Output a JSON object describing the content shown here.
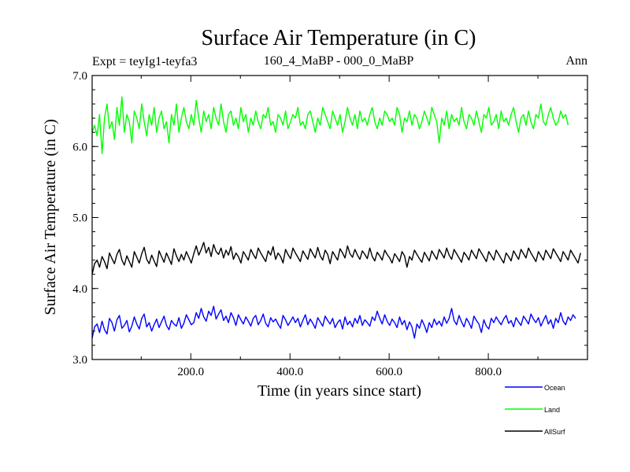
{
  "chart_data": {
    "type": "line",
    "title": "Surface Air Temperature (in C)",
    "subtitle_left": "Expt = teyIg1-teyfa3",
    "subtitle_center": "160_4_MaBP - 000_0_MaBP",
    "subtitle_right": "Ann",
    "xlabel": "Time (in years since start)",
    "ylabel": "Surface Air Temperature (in C)",
    "xlim": [
      1,
      1000
    ],
    "ylim": [
      3.0,
      7.0
    ],
    "x_ticks": [
      200,
      400,
      600,
      800
    ],
    "x_tick_labels": [
      "200.0",
      "400.0",
      "600.0",
      "800.0"
    ],
    "y_ticks": [
      3.0,
      4.0,
      5.0,
      6.0,
      7.0
    ],
    "y_tick_labels": [
      "3.0",
      "4.0",
      "5.0",
      "6.0",
      "7.0"
    ],
    "x_start": 1,
    "x_step": 5,
    "series": [
      {
        "name": "Ocean",
        "color": "#0000ff",
        "values": [
          3.3,
          3.46,
          3.5,
          3.38,
          3.54,
          3.42,
          3.36,
          3.58,
          3.52,
          3.4,
          3.56,
          3.62,
          3.44,
          3.48,
          3.55,
          3.39,
          3.47,
          3.6,
          3.5,
          3.43,
          3.58,
          3.64,
          3.46,
          3.52,
          3.4,
          3.49,
          3.57,
          3.45,
          3.53,
          3.61,
          3.48,
          3.42,
          3.55,
          3.5,
          3.47,
          3.59,
          3.44,
          3.51,
          3.63,
          3.56,
          3.49,
          3.52,
          3.66,
          3.58,
          3.72,
          3.6,
          3.54,
          3.68,
          3.62,
          3.75,
          3.57,
          3.64,
          3.7,
          3.55,
          3.61,
          3.52,
          3.66,
          3.59,
          3.48,
          3.63,
          3.56,
          3.5,
          3.6,
          3.54,
          3.47,
          3.58,
          3.62,
          3.49,
          3.55,
          3.64,
          3.51,
          3.46,
          3.59,
          3.53,
          3.57,
          3.5,
          3.44,
          3.62,
          3.56,
          3.48,
          3.54,
          3.6,
          3.52,
          3.58,
          3.46,
          3.55,
          3.63,
          3.49,
          3.57,
          3.51,
          3.44,
          3.59,
          3.53,
          3.47,
          3.61,
          3.55,
          3.5,
          3.58,
          3.45,
          3.52,
          3.56,
          3.43,
          3.6,
          3.49,
          3.54,
          3.46,
          3.58,
          3.51,
          3.62,
          3.48,
          3.56,
          3.52,
          3.47,
          3.6,
          3.55,
          3.68,
          3.58,
          3.5,
          3.63,
          3.54,
          3.48,
          3.57,
          3.52,
          3.45,
          3.6,
          3.49,
          3.55,
          3.42,
          3.53,
          3.46,
          3.3,
          3.5,
          3.44,
          3.56,
          3.48,
          3.38,
          3.52,
          3.45,
          3.57,
          3.49,
          3.54,
          3.47,
          3.6,
          3.51,
          3.58,
          3.72,
          3.55,
          3.49,
          3.62,
          3.53,
          3.46,
          3.58,
          3.52,
          3.44,
          3.61,
          3.55,
          3.5,
          3.38,
          3.56,
          3.47,
          3.43,
          3.58,
          3.52,
          3.6,
          3.54,
          3.49,
          3.57,
          3.62,
          3.51,
          3.55,
          3.46,
          3.59,
          3.53,
          3.48,
          3.61,
          3.56,
          3.5,
          3.64,
          3.57,
          3.52,
          3.59,
          3.47,
          3.55,
          3.62,
          3.5,
          3.56,
          3.44,
          3.58,
          3.52,
          3.66,
          3.54,
          3.49,
          3.6,
          3.55,
          3.63,
          3.58
        ]
      },
      {
        "name": "Land",
        "color": "#00ff00",
        "values": [
          6.2,
          6.3,
          6.15,
          6.45,
          5.9,
          6.4,
          6.6,
          6.25,
          6.35,
          6.1,
          6.55,
          6.3,
          6.7,
          6.2,
          6.45,
          6.35,
          6.05,
          6.5,
          6.4,
          6.25,
          6.6,
          6.35,
          6.15,
          6.45,
          6.3,
          6.55,
          6.2,
          6.4,
          6.5,
          6.25,
          6.35,
          6.05,
          6.45,
          6.3,
          6.6,
          6.2,
          6.4,
          6.55,
          6.35,
          6.25,
          6.45,
          6.3,
          6.65,
          6.4,
          6.2,
          6.5,
          6.35,
          6.45,
          6.25,
          6.55,
          6.4,
          6.3,
          6.6,
          6.35,
          6.2,
          6.45,
          6.5,
          6.3,
          6.4,
          6.25,
          6.55,
          6.35,
          6.45,
          6.2,
          6.4,
          6.3,
          6.5,
          6.35,
          6.25,
          6.45,
          6.4,
          6.55,
          6.3,
          6.35,
          6.2,
          6.45,
          6.4,
          6.3,
          6.5,
          6.25,
          6.35,
          6.45,
          6.4,
          6.55,
          6.3,
          6.35,
          6.25,
          6.45,
          6.5,
          6.35,
          6.2,
          6.4,
          6.3,
          6.55,
          6.45,
          6.35,
          6.25,
          6.5,
          6.4,
          6.3,
          6.45,
          6.2,
          6.35,
          6.55,
          6.4,
          6.3,
          6.45,
          6.25,
          6.5,
          6.35,
          6.4,
          6.3,
          6.45,
          6.55,
          6.35,
          6.25,
          6.4,
          6.3,
          6.5,
          6.45,
          6.35,
          6.4,
          6.3,
          6.55,
          6.45,
          6.2,
          6.4,
          6.35,
          6.5,
          6.3,
          6.45,
          6.4,
          6.25,
          6.35,
          6.5,
          6.4,
          6.3,
          6.55,
          6.45,
          6.35,
          6.05,
          6.4,
          6.3,
          6.5,
          6.25,
          6.45,
          6.35,
          6.4,
          6.3,
          6.55,
          6.35,
          6.25,
          6.45,
          6.4,
          6.3,
          6.5,
          6.35,
          6.2,
          6.45,
          6.4,
          6.55,
          6.3,
          6.35,
          6.45,
          6.25,
          6.5,
          6.35,
          6.4,
          6.3,
          6.45,
          6.55,
          6.35,
          6.2,
          6.4,
          6.45,
          6.3,
          6.5,
          6.35,
          6.25,
          6.45,
          6.4,
          6.6,
          6.35,
          6.3,
          6.45,
          6.55,
          6.4,
          6.3,
          6.35,
          6.5,
          6.4,
          6.45,
          6.3
        ]
      },
      {
        "name": "AllSurf",
        "color": "#000000",
        "values": [
          4.2,
          4.35,
          4.4,
          4.3,
          4.45,
          4.38,
          4.28,
          4.5,
          4.42,
          4.35,
          4.48,
          4.55,
          4.4,
          4.33,
          4.46,
          4.38,
          4.3,
          4.52,
          4.44,
          4.36,
          4.49,
          4.58,
          4.41,
          4.35,
          4.47,
          4.39,
          4.31,
          4.53,
          4.45,
          4.37,
          4.5,
          4.42,
          4.34,
          4.56,
          4.46,
          4.38,
          4.48,
          4.4,
          4.52,
          4.44,
          4.36,
          4.49,
          4.6,
          4.47,
          4.55,
          4.65,
          4.5,
          4.58,
          4.45,
          4.62,
          4.52,
          4.48,
          4.57,
          4.43,
          4.54,
          4.47,
          4.59,
          4.41,
          4.5,
          4.45,
          4.36,
          4.52,
          4.46,
          4.4,
          4.55,
          4.48,
          4.42,
          4.57,
          4.5,
          4.44,
          4.38,
          4.53,
          4.47,
          4.59,
          4.41,
          4.5,
          4.45,
          4.36,
          4.55,
          4.48,
          4.42,
          4.57,
          4.5,
          4.44,
          4.38,
          4.53,
          4.47,
          4.41,
          4.56,
          4.49,
          4.43,
          4.58,
          4.46,
          4.4,
          4.54,
          4.48,
          4.35,
          4.52,
          4.46,
          4.4,
          4.56,
          4.5,
          4.43,
          4.6,
          4.49,
          4.44,
          4.55,
          4.47,
          4.41,
          4.53,
          4.48,
          4.42,
          4.57,
          4.45,
          4.39,
          4.51,
          4.46,
          4.4,
          4.54,
          4.48,
          4.43,
          4.36,
          4.49,
          4.44,
          4.38,
          4.52,
          4.46,
          4.3,
          4.45,
          4.4,
          4.54,
          4.48,
          4.42,
          4.37,
          4.51,
          4.45,
          4.39,
          4.53,
          4.47,
          4.41,
          4.55,
          4.49,
          4.43,
          4.57,
          4.47,
          4.41,
          4.55,
          4.49,
          4.43,
          4.37,
          4.51,
          4.46,
          4.4,
          4.54,
          4.48,
          4.42,
          4.56,
          4.5,
          4.44,
          4.38,
          4.52,
          4.46,
          4.4,
          4.54,
          4.48,
          4.42,
          4.36,
          4.5,
          4.45,
          4.39,
          4.53,
          4.47,
          4.41,
          4.55,
          4.49,
          4.43,
          4.57,
          4.5,
          4.44,
          4.38,
          4.52,
          4.46,
          4.4,
          4.54,
          4.48,
          4.42,
          4.56,
          4.5,
          4.44,
          4.38,
          4.52,
          4.46,
          4.4,
          4.54,
          4.48,
          4.42,
          4.36,
          4.5
        ]
      }
    ],
    "legend": {
      "placement": "bottom-right",
      "entries": [
        "Ocean",
        "Land",
        "AllSurf"
      ]
    }
  }
}
